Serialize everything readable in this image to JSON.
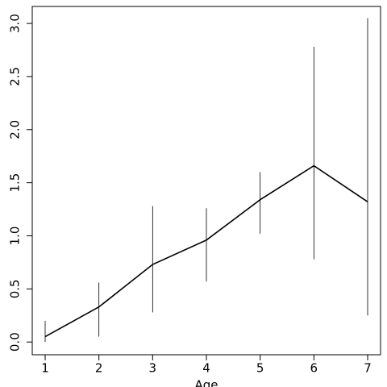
{
  "chart_data": {
    "type": "line",
    "x_label": "Age",
    "x": [
      1,
      2,
      3,
      4,
      5,
      6,
      7
    ],
    "series": [
      {
        "color": "#000000",
        "values": [
          0.05,
          0.33,
          0.73,
          0.96,
          1.34,
          1.66,
          1.32
        ],
        "lower": [
          0.0,
          0.05,
          0.28,
          0.57,
          1.02,
          0.78,
          0.25
        ],
        "upper": [
          0.2,
          0.56,
          1.28,
          1.26,
          1.6,
          2.78,
          3.05
        ]
      }
    ],
    "xlim": [
      0.76,
      7.24
    ],
    "ylim": [
      -0.12,
      3.16
    ],
    "xticks": [
      1,
      2,
      3,
      4,
      5,
      6,
      7
    ],
    "yticks": [
      {
        "value": 0,
        "label": "0.0"
      },
      0.5,
      {
        "value": 1,
        "label": "1.0"
      },
      1.5,
      {
        "value": 2,
        "label": "2.0"
      },
      2.5,
      {
        "value": 3,
        "label": "3.0"
      }
    ]
  }
}
